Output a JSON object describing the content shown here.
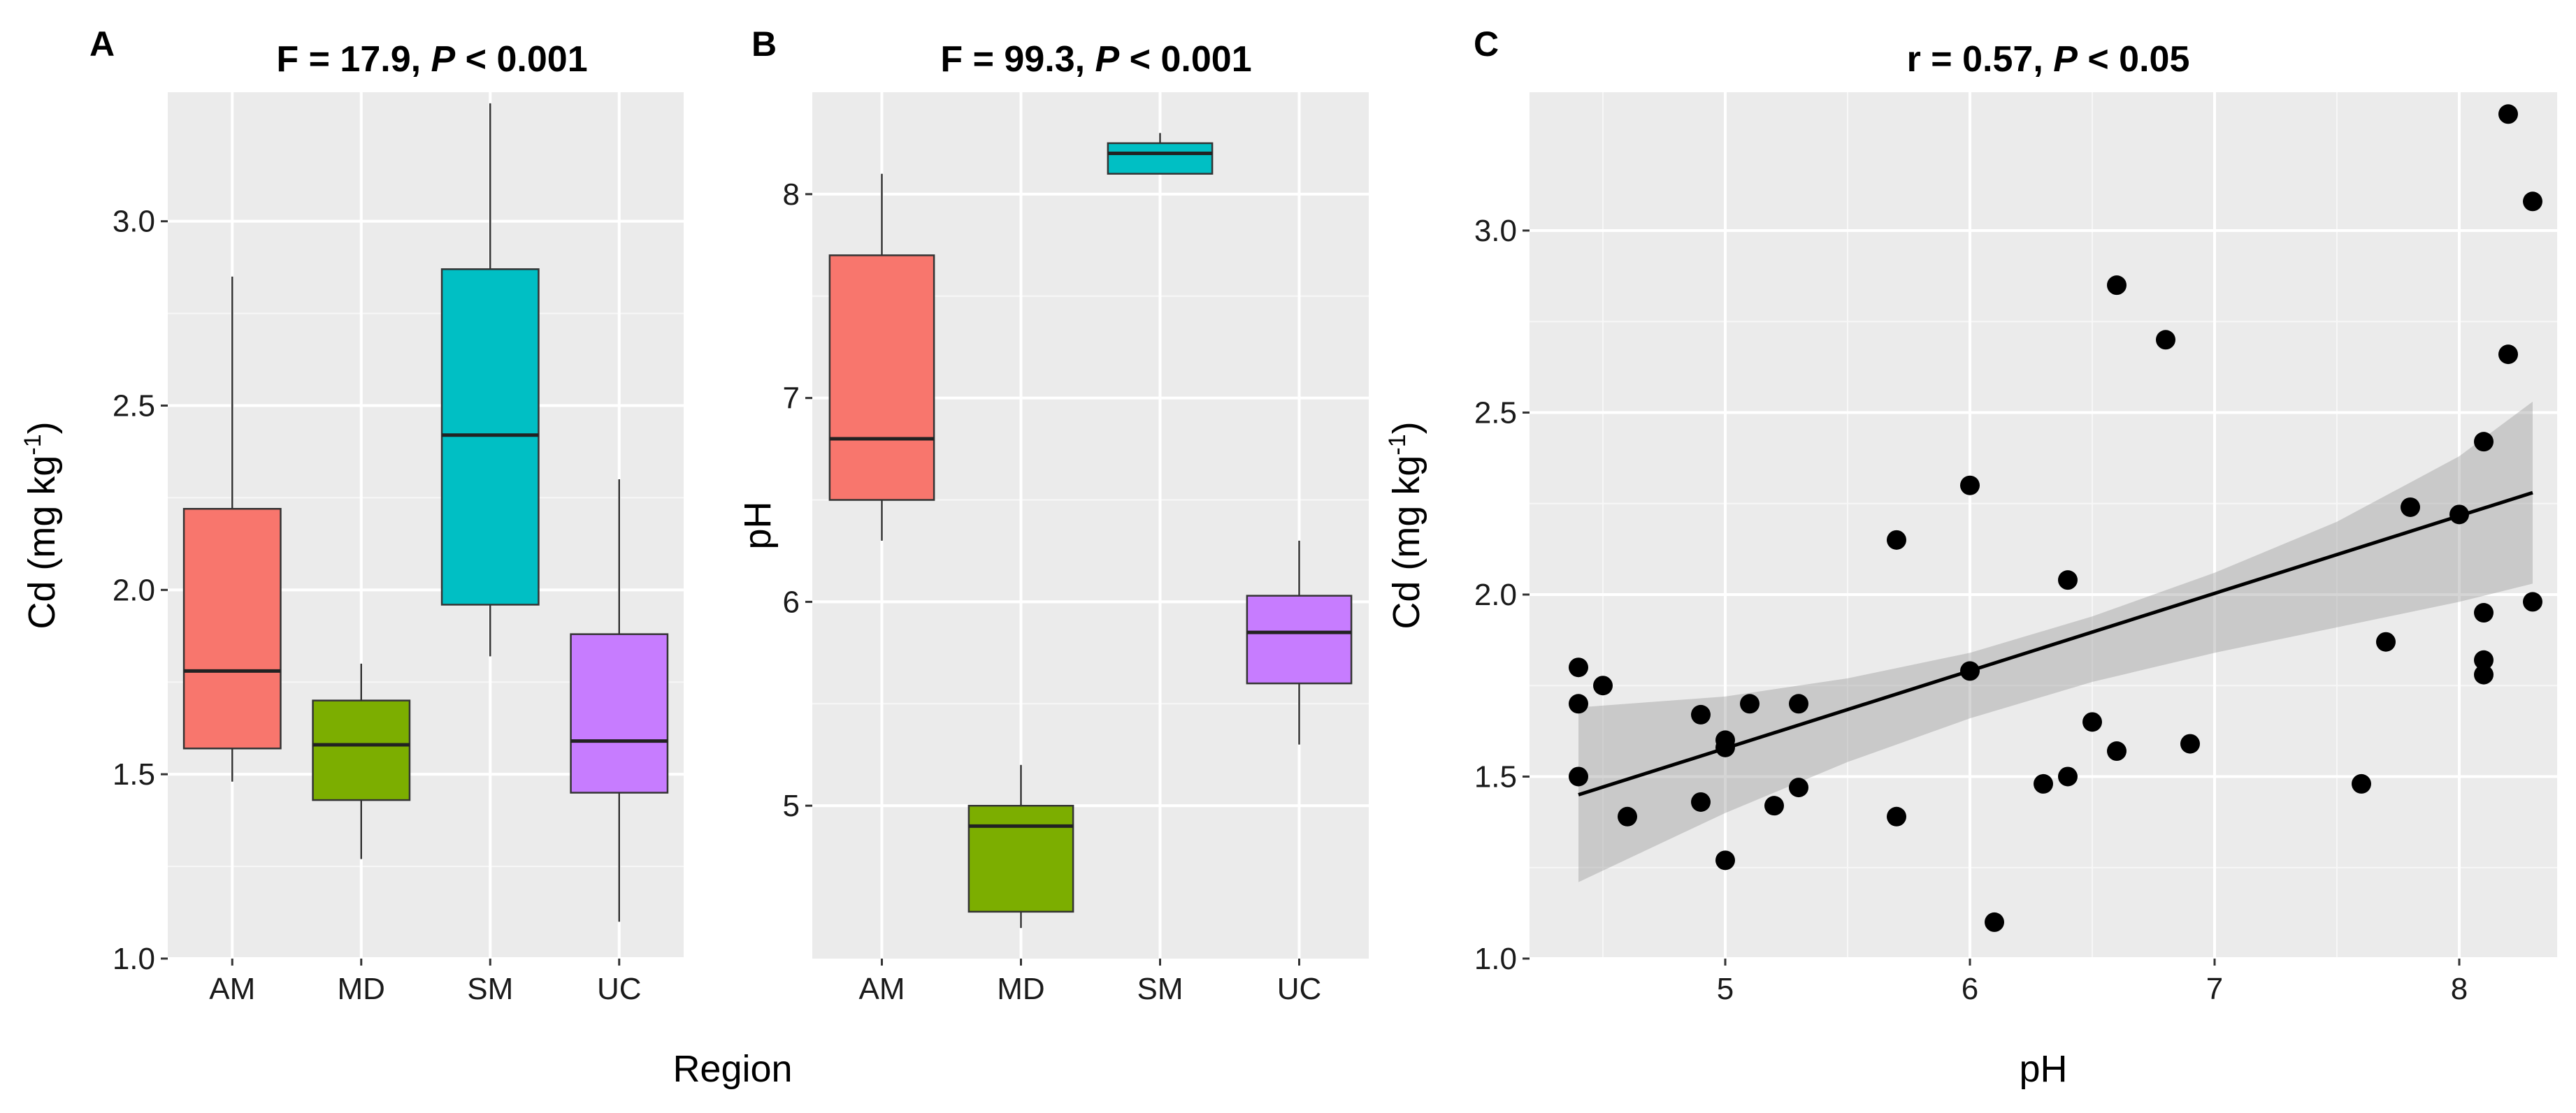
{
  "chart_data": [
    {
      "panel": "A",
      "type": "box",
      "title": "F = 17.9, P < 0.001",
      "title_plain": "F = 17.9, ",
      "title_italic": "P",
      "title_rest": " < 0.001",
      "xlabel": "Region",
      "ylabel_main": "Cd (mg kg",
      "ylabel_sup": "-1",
      "ylabel_end": ")",
      "ylim": [
        1.0,
        3.35
      ],
      "yticks": [
        1.0,
        1.5,
        2.0,
        2.5,
        3.0
      ],
      "ytick_labels": [
        "1.0",
        "1.5",
        "2.0",
        "2.5",
        "3.0"
      ],
      "categories": [
        "AM",
        "MD",
        "SM",
        "UC"
      ],
      "boxes": [
        {
          "group": "AM",
          "whisker_low": 1.48,
          "q1": 1.57,
          "median": 1.78,
          "q3": 2.22,
          "whisker_high": 2.85,
          "color": "#F8766D"
        },
        {
          "group": "MD",
          "whisker_low": 1.27,
          "q1": 1.43,
          "median": 1.58,
          "q3": 1.7,
          "whisker_high": 1.8,
          "color": "#7CAE00"
        },
        {
          "group": "SM",
          "whisker_low": 1.82,
          "q1": 1.96,
          "median": 2.42,
          "q3": 2.87,
          "whisker_high": 3.32,
          "color": "#00BFC4"
        },
        {
          "group": "UC",
          "whisker_low": 1.1,
          "q1": 1.45,
          "median": 1.59,
          "q3": 1.88,
          "whisker_high": 2.3,
          "color": "#C77CFF"
        }
      ]
    },
    {
      "panel": "B",
      "type": "box",
      "title": "F = 99.3, P < 0.001",
      "title_plain": "F = 99.3, ",
      "title_italic": "P",
      "title_rest": " < 0.001",
      "xlabel": "",
      "ylabel_main": "pH",
      "ylim": [
        4.25,
        8.5
      ],
      "yticks": [
        5,
        6,
        7,
        8
      ],
      "ytick_labels": [
        "5",
        "6",
        "7",
        "8"
      ],
      "categories": [
        "AM",
        "MD",
        "SM",
        "UC"
      ],
      "boxes": [
        {
          "group": "AM",
          "whisker_low": 6.3,
          "q1": 6.5,
          "median": 6.8,
          "q3": 7.7,
          "whisker_high": 8.1,
          "color": "#F8766D"
        },
        {
          "group": "MD",
          "whisker_low": 4.4,
          "q1": 4.48,
          "median": 4.9,
          "q3": 5.0,
          "whisker_high": 5.2,
          "color": "#7CAE00"
        },
        {
          "group": "SM",
          "whisker_low": 8.1,
          "q1": 8.1,
          "median": 8.2,
          "q3": 8.25,
          "whisker_high": 8.3,
          "color": "#00BFC4"
        },
        {
          "group": "UC",
          "whisker_low": 5.3,
          "q1": 5.6,
          "median": 5.85,
          "q3": 6.03,
          "whisker_high": 6.3,
          "color": "#C77CFF"
        }
      ]
    },
    {
      "panel": "C",
      "type": "scatter",
      "title": "r = 0.57, P < 0.05",
      "title_plain": "r = 0.57, ",
      "title_italic": "P",
      "title_rest": " < 0.05",
      "xlabel": "pH",
      "ylabel_main": "Cd (mg kg",
      "ylabel_sup": "-1",
      "ylabel_end": ")",
      "xlim": [
        4.2,
        8.4
      ],
      "ylim": [
        1.0,
        3.38
      ],
      "xticks": [
        5,
        6,
        7,
        8
      ],
      "xtick_labels": [
        "5",
        "6",
        "7",
        "8"
      ],
      "yticks": [
        1.0,
        1.5,
        2.0,
        2.5,
        3.0
      ],
      "ytick_labels": [
        "1.0",
        "1.5",
        "2.0",
        "2.5",
        "3.0"
      ],
      "points": [
        [
          4.4,
          1.8
        ],
        [
          4.4,
          1.7
        ],
        [
          4.4,
          1.5
        ],
        [
          4.5,
          1.75
        ],
        [
          4.6,
          1.39
        ],
        [
          4.9,
          1.67
        ],
        [
          4.9,
          1.43
        ],
        [
          5.0,
          1.6
        ],
        [
          5.0,
          1.58
        ],
        [
          5.0,
          1.27
        ],
        [
          5.1,
          1.7
        ],
        [
          5.2,
          1.42
        ],
        [
          5.3,
          1.7
        ],
        [
          5.3,
          1.47
        ],
        [
          5.7,
          2.15
        ],
        [
          5.7,
          1.39
        ],
        [
          6.0,
          2.3
        ],
        [
          6.0,
          1.79
        ],
        [
          6.1,
          1.1
        ],
        [
          6.3,
          1.48
        ],
        [
          6.4,
          2.04
        ],
        [
          6.4,
          1.5
        ],
        [
          6.5,
          1.65
        ],
        [
          6.6,
          2.85
        ],
        [
          6.6,
          1.57
        ],
        [
          6.8,
          2.7
        ],
        [
          6.9,
          1.59
        ],
        [
          7.6,
          1.48
        ],
        [
          7.7,
          1.87
        ],
        [
          7.8,
          2.24
        ],
        [
          8.0,
          2.22
        ],
        [
          8.1,
          2.42
        ],
        [
          8.1,
          1.95
        ],
        [
          8.1,
          1.82
        ],
        [
          8.1,
          1.78
        ],
        [
          8.2,
          3.32
        ],
        [
          8.2,
          2.66
        ],
        [
          8.3,
          3.08
        ],
        [
          8.3,
          1.98
        ]
      ],
      "fit_line": {
        "x": [
          4.4,
          8.3
        ],
        "y": [
          1.45,
          2.28
        ]
      },
      "confidence_band": {
        "x": [
          4.4,
          5.0,
          5.5,
          6.0,
          6.5,
          7.0,
          7.5,
          8.0,
          8.3
        ],
        "lower": [
          1.21,
          1.4,
          1.54,
          1.66,
          1.76,
          1.84,
          1.91,
          1.98,
          2.03
        ],
        "upper": [
          1.69,
          1.72,
          1.77,
          1.84,
          1.94,
          2.06,
          2.2,
          2.38,
          2.53
        ]
      }
    }
  ]
}
